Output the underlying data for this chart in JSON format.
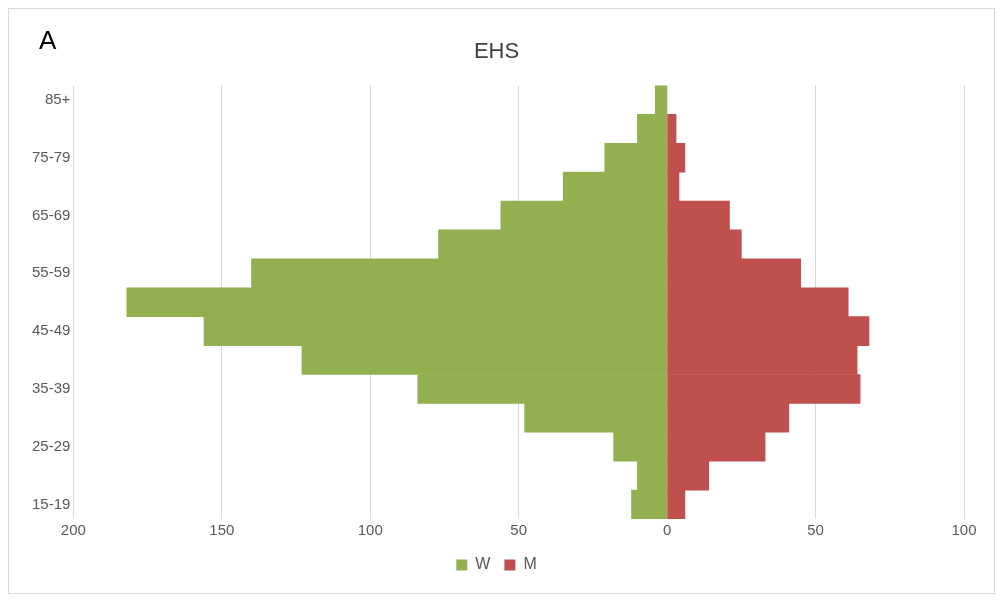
{
  "chart_data": {
    "type": "bar",
    "orientation": "horizontal",
    "stacked": true,
    "title": "EHS",
    "annotations": [
      "A"
    ],
    "categories": [
      "85+",
      null,
      "75-79",
      null,
      "65-69",
      null,
      "55-59",
      null,
      "45-49",
      null,
      "35-39",
      null,
      "25-29",
      null,
      "15-19"
    ],
    "series": [
      {
        "name": "W",
        "color": "#92b050",
        "values": [
          -4,
          -10,
          -21,
          -35,
          -56,
          -77,
          -140,
          -182,
          -156,
          -123,
          -84,
          -48,
          -18,
          -10,
          -12
        ]
      },
      {
        "name": "M",
        "color": "#c0504d",
        "values": [
          null,
          3,
          6,
          4,
          21,
          25,
          45,
          61,
          68,
          64,
          65,
          41,
          33,
          14,
          6
        ]
      }
    ],
    "xlim": [
      -200,
      100
    ],
    "xticks": [
      {
        "value": -200,
        "label": "200"
      },
      {
        "value": -150,
        "label": "150"
      },
      {
        "value": -100,
        "label": "100"
      },
      {
        "value": -50,
        "label": "50"
      },
      0,
      50,
      100
    ],
    "grid": "x",
    "legend": "bottom"
  }
}
